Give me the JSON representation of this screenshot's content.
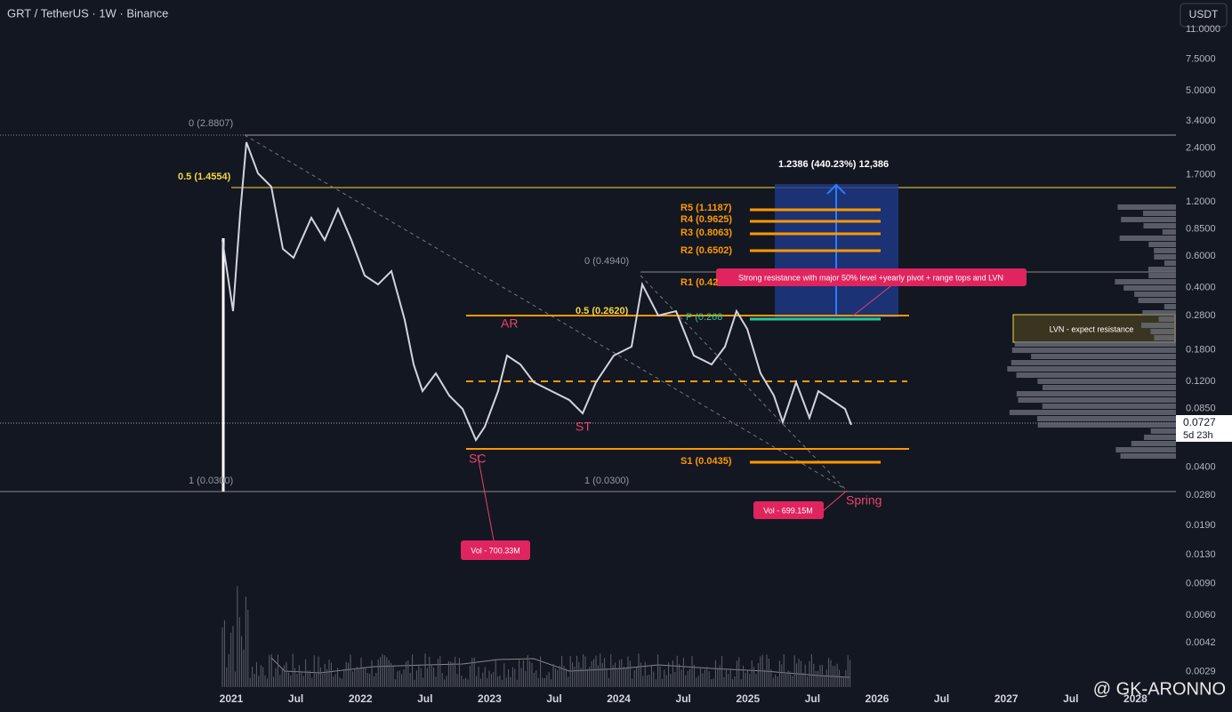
{
  "header": {
    "symbol": "GRT / TetherUS · 1W · Binance",
    "currency_button": "USDT"
  },
  "price_axis": [
    "11.0000",
    "7.5000",
    "5.0000",
    "3.4000",
    "2.4000",
    "1.7000",
    "1.2000",
    "0.8500",
    "0.6000",
    "0.4000",
    "0.2800",
    "0.1800",
    "0.1200",
    "0.0850",
    "0.0400",
    "0.0280",
    "0.0190",
    "0.0130",
    "0.0090",
    "0.0060",
    "0.0042",
    "0.0029"
  ],
  "last_price": {
    "price": "0.0727",
    "countdown": "5d 23h"
  },
  "time_axis": [
    "2021",
    "Jul",
    "2022",
    "Jul",
    "2023",
    "Jul",
    "2024",
    "Jul",
    "2025",
    "Jul",
    "2026",
    "Jul",
    "2027",
    "Jul",
    "2028"
  ],
  "annotations": {
    "fib_left_0": "0 (2.8807)",
    "fib_left_05": "0.5 (1.4554)",
    "fib_left_1": "1 (0.0300)",
    "fib_right_0": "0 (0.4940)",
    "fib_right_05": "0.5 (0.2620)",
    "fib_right_1": "1 (0.0300)",
    "r5": "R5 (1.1187)",
    "r4": "R4 (0.9625)",
    "r3": "R3 (0.8063)",
    "r2": "R2 (0.6502)",
    "r1": "R1 (0.42",
    "p": "P (0.268",
    "s1": "S1 (0.0435)",
    "target": "1.2386 (440.23%) 12,386",
    "resistance_note": "Strong resistance with major 50% level +yearly pivot + range tops and LVN",
    "lvn": "LVN - expect resistance",
    "ar": "AR",
    "st": "ST",
    "sc": "SC",
    "spring": "Spring",
    "vol_sc": "Vol - 700.33M",
    "vol_spring": "Vol - 699.15M"
  },
  "watermark": "@ GK-ARONNO"
}
